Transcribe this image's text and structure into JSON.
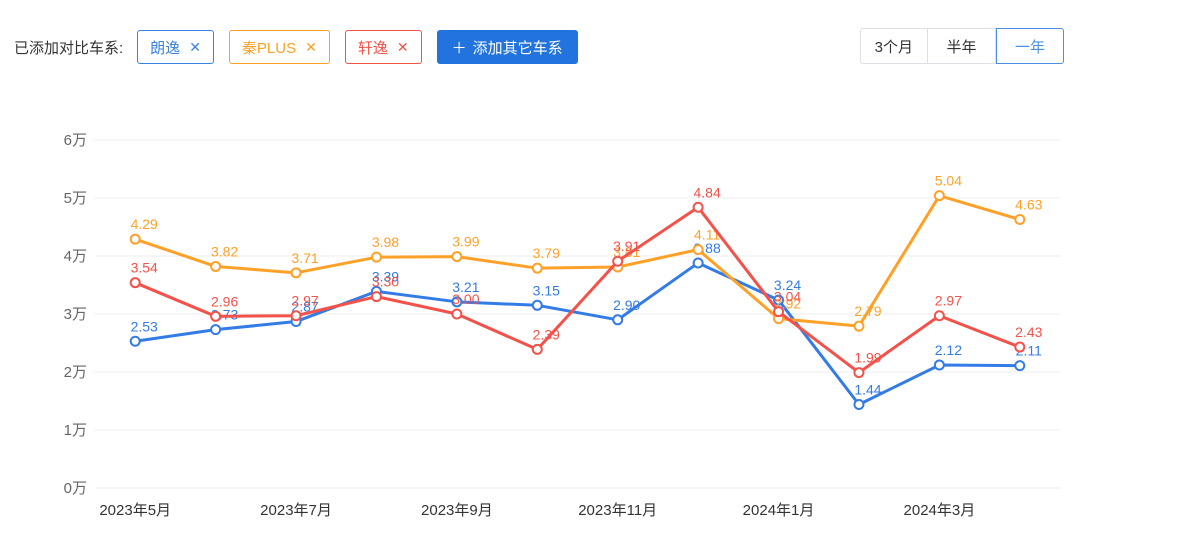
{
  "header": {
    "label": "已添加对比车系:",
    "series_tags": [
      {
        "name": "朗逸",
        "color": "#3b82e0"
      },
      {
        "name": "秦PLUS",
        "color": "#ffa128"
      },
      {
        "name": "轩逸",
        "color": "#f3524a"
      }
    ],
    "close_icon": "✕",
    "plus_icon": "＋",
    "add_label": "添加其它车系"
  },
  "range_buttons": [
    {
      "label": "3个月",
      "active": false
    },
    {
      "label": "半年",
      "active": false
    },
    {
      "label": "一年",
      "active": true
    }
  ],
  "chart_data": {
    "type": "line",
    "unit": "万",
    "n_points": 12,
    "x_tick_indices": [
      0,
      2,
      4,
      6,
      8,
      10
    ],
    "x_labels_shown": [
      "2023年5月",
      "2023年7月",
      "2023年9月",
      "2023年11月",
      "2024年1月",
      "2024年3月"
    ],
    "y_ticks": [
      "0万",
      "1万",
      "2万",
      "3万",
      "4万",
      "5万",
      "6万"
    ],
    "ylim": [
      0,
      6
    ],
    "grid": true,
    "legend_position": "top-left-tags",
    "series": [
      {
        "name": "朗逸",
        "color": "#337ce6",
        "values": [
          2.53,
          2.73,
          2.87,
          3.39,
          3.21,
          3.15,
          2.9,
          3.88,
          3.24,
          1.44,
          2.12,
          2.11
        ]
      },
      {
        "name": "秦PLUS",
        "color": "#ffa128",
        "values": [
          4.29,
          3.82,
          3.71,
          3.98,
          3.99,
          3.79,
          3.81,
          4.11,
          2.92,
          2.79,
          5.04,
          4.63
        ]
      },
      {
        "name": "轩逸",
        "color": "#f3524a",
        "values": [
          3.54,
          2.96,
          2.97,
          3.3,
          3.0,
          2.39,
          3.91,
          4.84,
          3.04,
          1.99,
          2.97,
          2.43
        ]
      }
    ],
    "colors": {
      "grid_line": "#ececec",
      "y_label": "#666666",
      "x_label": "#333333"
    }
  }
}
